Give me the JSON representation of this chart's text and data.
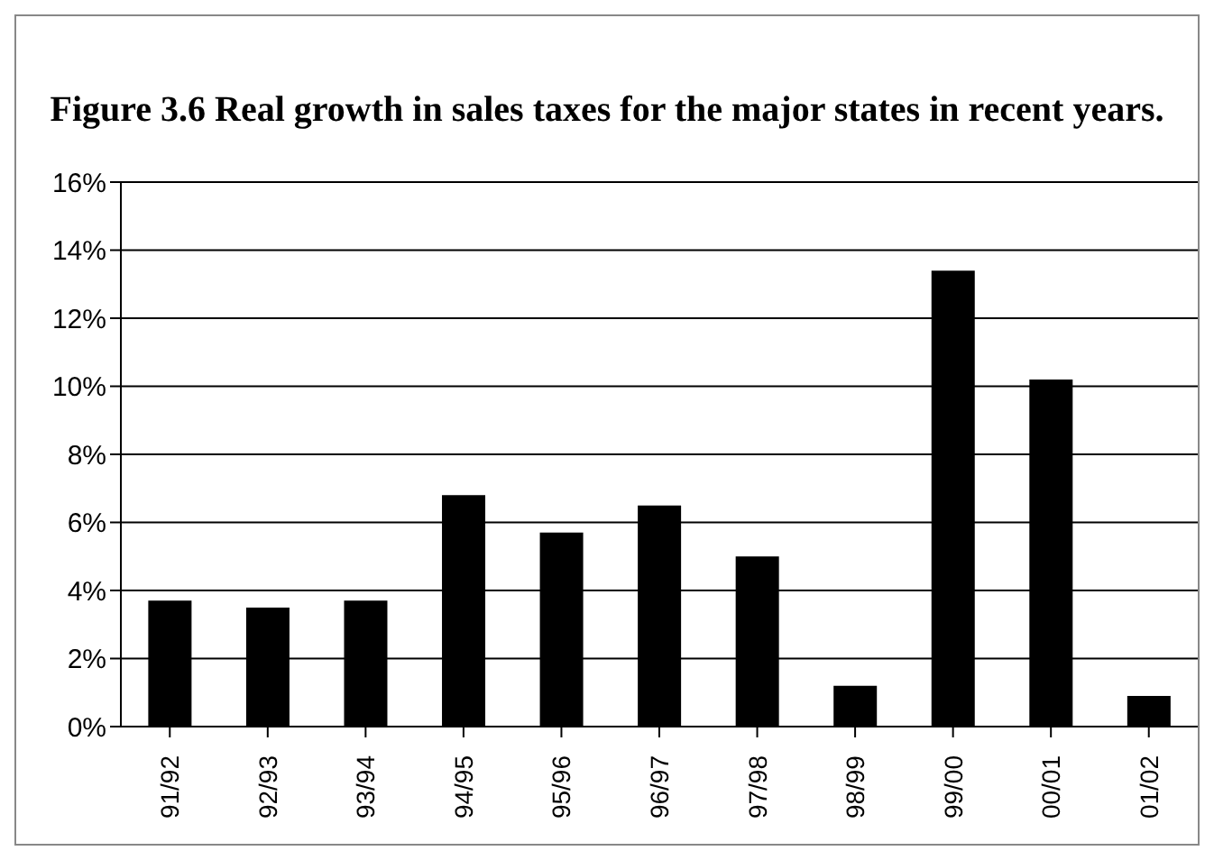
{
  "chart_data": {
    "type": "bar",
    "title": "Figure 3.6 Real growth in sales taxes for the major states in recent years.",
    "categories": [
      "91/92",
      "92/93",
      "93/94",
      "94/95",
      "95/96",
      "96/97",
      "97/98",
      "98/99",
      "99/00",
      "00/01",
      "01/02"
    ],
    "values": [
      3.7,
      3.5,
      3.7,
      6.8,
      5.7,
      6.5,
      5.0,
      1.2,
      13.4,
      10.2,
      0.9
    ],
    "color": "#000000",
    "ylim": [
      0,
      16
    ],
    "yticks": [
      {
        "value": 0,
        "label": "0%"
      },
      {
        "value": 2,
        "label": "2%"
      },
      {
        "value": 4,
        "label": "4%"
      },
      {
        "value": 6,
        "label": "6%"
      },
      {
        "value": 8,
        "label": "8%"
      },
      {
        "value": 10,
        "label": "10%"
      },
      {
        "value": 12,
        "label": "12%"
      },
      {
        "value": 14,
        "label": "14%"
      },
      {
        "value": 16,
        "label": "16%"
      }
    ],
    "grid": "y"
  }
}
